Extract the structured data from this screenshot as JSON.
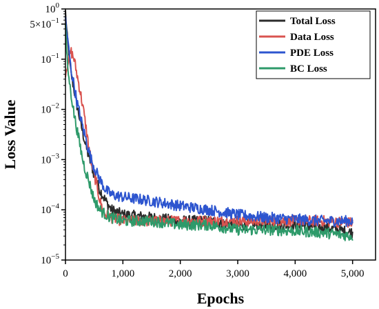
{
  "chart_data": {
    "type": "line",
    "title": "",
    "xlabel": "Epochs",
    "ylabel": "Loss Value",
    "xlim": [
      0,
      5400
    ],
    "ylim": [
      1e-05,
      1
    ],
    "yscale": "log",
    "grid": false,
    "legend_position": "top-right",
    "x_ticks": [
      0,
      1000,
      2000,
      3000,
      4000,
      5000
    ],
    "x_tick_labels": [
      "0",
      "1,000",
      "2,000",
      "3,000",
      "4,000",
      "5,000"
    ],
    "y_ticks": [
      1e-05,
      0.0001,
      0.001,
      0.01,
      0.1,
      0.5,
      1
    ],
    "y_tick_labels": [
      {
        "base": "10",
        "exp": "−5"
      },
      {
        "base": "10",
        "exp": "−4"
      },
      {
        "base": "10",
        "exp": "−3"
      },
      {
        "base": "10",
        "exp": "−2"
      },
      {
        "base": "10",
        "exp": "−1"
      },
      {
        "base": "5×10",
        "exp": "−1"
      },
      {
        "base": "10",
        "exp": "0"
      }
    ],
    "series": [
      {
        "name": "Total Loss",
        "color": "#2b2b2b",
        "x": [
          0,
          20,
          60,
          100,
          150,
          200,
          250,
          300,
          350,
          400,
          450,
          500,
          600,
          700,
          800,
          1000,
          1500,
          2000,
          2500,
          3000,
          3500,
          4000,
          4500,
          5000
        ],
        "y": [
          0.9,
          0.4,
          0.12,
          0.05,
          0.025,
          0.012,
          0.0065,
          0.0035,
          0.002,
          0.0012,
          0.0008,
          0.0005,
          0.00025,
          0.00015,
          0.0001,
          8e-05,
          7e-05,
          6e-05,
          6e-05,
          5e-05,
          5e-05,
          5e-05,
          4.5e-05,
          3.5e-05
        ]
      },
      {
        "name": "Data Loss",
        "color": "#d9534f",
        "x": [
          0,
          50,
          80,
          100,
          150,
          200,
          250,
          300,
          350,
          400,
          450,
          500,
          550,
          600,
          650,
          700,
          800,
          1000,
          1500,
          2000,
          2500,
          3000,
          3500,
          4000,
          4500,
          5000
        ],
        "y": [
          0.05,
          0.09,
          0.13,
          0.14,
          0.1,
          0.05,
          0.025,
          0.012,
          0.005,
          0.002,
          0.0009,
          0.0005,
          0.0003,
          0.00015,
          0.0001,
          8e-05,
          7e-05,
          6e-05,
          6e-05,
          6e-05,
          6e-05,
          6e-05,
          6e-05,
          6e-05,
          6e-05,
          5.5e-05
        ]
      },
      {
        "name": "PDE Loss",
        "color": "#2d55cf",
        "x": [
          0,
          20,
          50,
          100,
          150,
          200,
          250,
          300,
          350,
          400,
          450,
          500,
          600,
          700,
          800,
          1000,
          1500,
          2000,
          2500,
          3000,
          3500,
          4000,
          4500,
          5000
        ],
        "y": [
          0.7,
          0.35,
          0.2,
          0.06,
          0.03,
          0.014,
          0.008,
          0.0045,
          0.0027,
          0.0016,
          0.001,
          0.0007,
          0.0004,
          0.00025,
          0.0002,
          0.00018,
          0.00015,
          0.00012,
          0.0001,
          8e-05,
          7e-05,
          6.5e-05,
          6e-05,
          6e-05
        ]
      },
      {
        "name": "BC Loss",
        "color": "#2e9a6a",
        "x": [
          0,
          20,
          50,
          100,
          150,
          200,
          250,
          300,
          350,
          400,
          450,
          500,
          600,
          700,
          800,
          1000,
          1500,
          2000,
          2500,
          3000,
          3500,
          4000,
          4500,
          5000
        ],
        "y": [
          0.5,
          0.15,
          0.05,
          0.02,
          0.008,
          0.004,
          0.002,
          0.001,
          0.0006,
          0.0004,
          0.00025,
          0.00016,
          0.0001,
          8e-05,
          7e-05,
          6e-05,
          6e-05,
          5e-05,
          5e-05,
          4e-05,
          4e-05,
          3.8e-05,
          3.5e-05,
          3e-05
        ]
      }
    ]
  }
}
